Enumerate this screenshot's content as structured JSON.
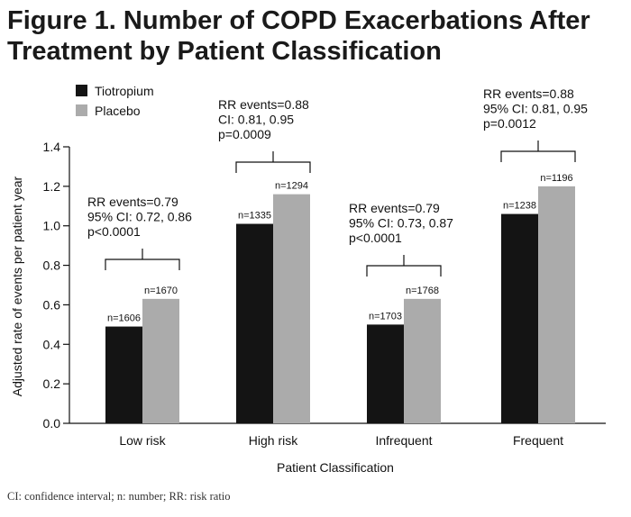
{
  "figure": {
    "title_line1": "Figure 1. Number of COPD Exacerbations After",
    "title_line2": "Treatment by Patient Classification",
    "footnote": "CI: confidence interval;  n: number; RR: risk ratio"
  },
  "colors": {
    "tiotropium": "#141414",
    "placebo": "#ababab"
  },
  "chart_data": {
    "type": "bar",
    "title": "Figure 1. Number of COPD Exacerbations After Treatment by Patient Classification",
    "xlabel": "Patient Classification",
    "ylabel": "Adjusted rate of events per patient year",
    "ylim": [
      0.0,
      1.4
    ],
    "yticks": [
      "0.0",
      "0.2",
      "0.4",
      "0.6",
      "0.8",
      "1.0",
      "1.2",
      "1.4"
    ],
    "categories": [
      "Low risk",
      "High risk",
      "Infrequent",
      "Frequent"
    ],
    "legend_position": "top-left",
    "series": [
      {
        "name": "Tiotropium",
        "values": [
          0.49,
          1.01,
          0.5,
          1.06
        ],
        "n_labels": [
          "n=1606",
          "n=1335",
          "n=1703",
          "n=1238"
        ]
      },
      {
        "name": "Placebo",
        "values": [
          0.63,
          1.16,
          0.63,
          1.2
        ],
        "n_labels": [
          "n=1670",
          "n=1294",
          "n=1768",
          "n=1196"
        ]
      }
    ],
    "annotations": [
      {
        "lines": [
          "RR events=0.79",
          "95% CI: 0.72, 0.86",
          "p<0.0001"
        ]
      },
      {
        "lines": [
          "RR events=0.88",
          "CI: 0.81, 0.95",
          "p=0.0009"
        ]
      },
      {
        "lines": [
          "RR events=0.79",
          "95% CI: 0.73, 0.87",
          "p<0.0001"
        ]
      },
      {
        "lines": [
          "RR events=0.88",
          "95% CI: 0.81, 0.95",
          "p=0.0012"
        ]
      }
    ]
  }
}
